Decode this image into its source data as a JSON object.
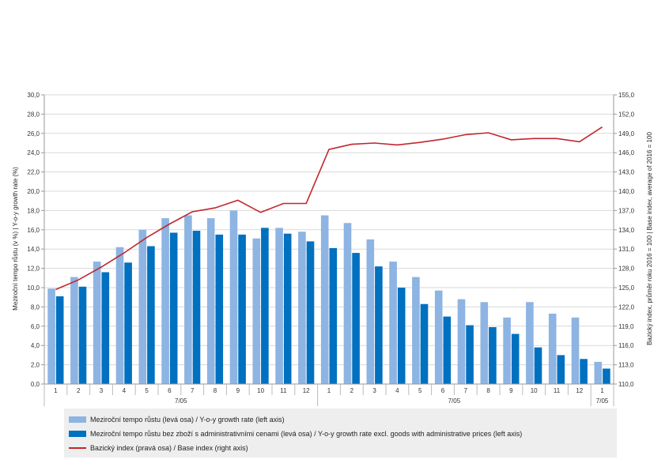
{
  "chart_data": {
    "type": "bar",
    "categories": [
      "1",
      "2",
      "3",
      "4",
      "5",
      "6",
      "7",
      "8",
      "9",
      "10",
      "11",
      "12",
      "1",
      "2",
      "3",
      "4",
      "5",
      "6",
      "7",
      "8",
      "9",
      "10",
      "11",
      "12",
      "1"
    ],
    "group_labels": [
      "7/05",
      "7/05",
      "7/05"
    ],
    "series": [
      {
        "name": "Meziroční tempo růstu (levá osa) / Y-o-y growth rate (left axis)",
        "type": "bar",
        "axis": "left",
        "color": "#8db4e2",
        "values": [
          9.9,
          11.1,
          12.7,
          14.2,
          16.0,
          17.2,
          17.5,
          17.2,
          18.0,
          15.1,
          16.2,
          15.8,
          17.5,
          16.7,
          15.0,
          12.7,
          11.1,
          9.7,
          8.8,
          8.5,
          6.9,
          8.5,
          7.3,
          6.9,
          2.3
        ]
      },
      {
        "name": "Meziroční tempo růstu bez zboží s administrativními cenami (levá osa) / Y-o-y growth rate excl. goods with administrative prices (left axis)",
        "type": "bar",
        "axis": "left",
        "color": "#0070c0",
        "values": [
          9.1,
          10.1,
          11.6,
          12.6,
          14.3,
          15.7,
          15.9,
          15.5,
          15.5,
          16.2,
          15.6,
          14.8,
          14.1,
          13.6,
          12.2,
          10.0,
          8.3,
          7.0,
          6.1,
          5.9,
          5.2,
          3.8,
          3.0,
          2.6,
          1.6
        ]
      },
      {
        "name": "Bazický index (pravá osa) / Base index (right axis)",
        "type": "line",
        "axis": "right",
        "color": "#c0272d",
        "values": [
          124.7,
          126.2,
          128.2,
          130.4,
          132.8,
          134.9,
          136.8,
          137.4,
          138.6,
          136.7,
          138.1,
          138.1,
          146.5,
          147.3,
          147.5,
          147.2,
          147.6,
          148.1,
          148.8,
          149.1,
          148.0,
          148.2,
          148.2,
          147.7,
          150.0
        ]
      }
    ],
    "ylabel": "Meziroční tempo růstu (v %) | Y-o-y growth rate (%)",
    "y2label": "Bazický index, průměr roku 2016 = 100 | Base index, average of 2016 = 100",
    "ylim": [
      0,
      30
    ],
    "y2lim": [
      110,
      155
    ],
    "yticks": [
      "0,0",
      "2,0",
      "4,0",
      "6,0",
      "8,0",
      "10,0",
      "12,0",
      "14,0",
      "16,0",
      "18,0",
      "20,0",
      "22,0",
      "24,0",
      "26,0",
      "28,0",
      "30,0"
    ],
    "y2ticks": [
      "110,0",
      "113,0",
      "116,0",
      "119,0",
      "122,0",
      "125,0",
      "128,0",
      "131,0",
      "134,0",
      "137,0",
      "140,0",
      "143,0",
      "146,0",
      "149,0",
      "152,0",
      "155,0"
    ],
    "grid": true,
    "legend_position": "bottom"
  }
}
